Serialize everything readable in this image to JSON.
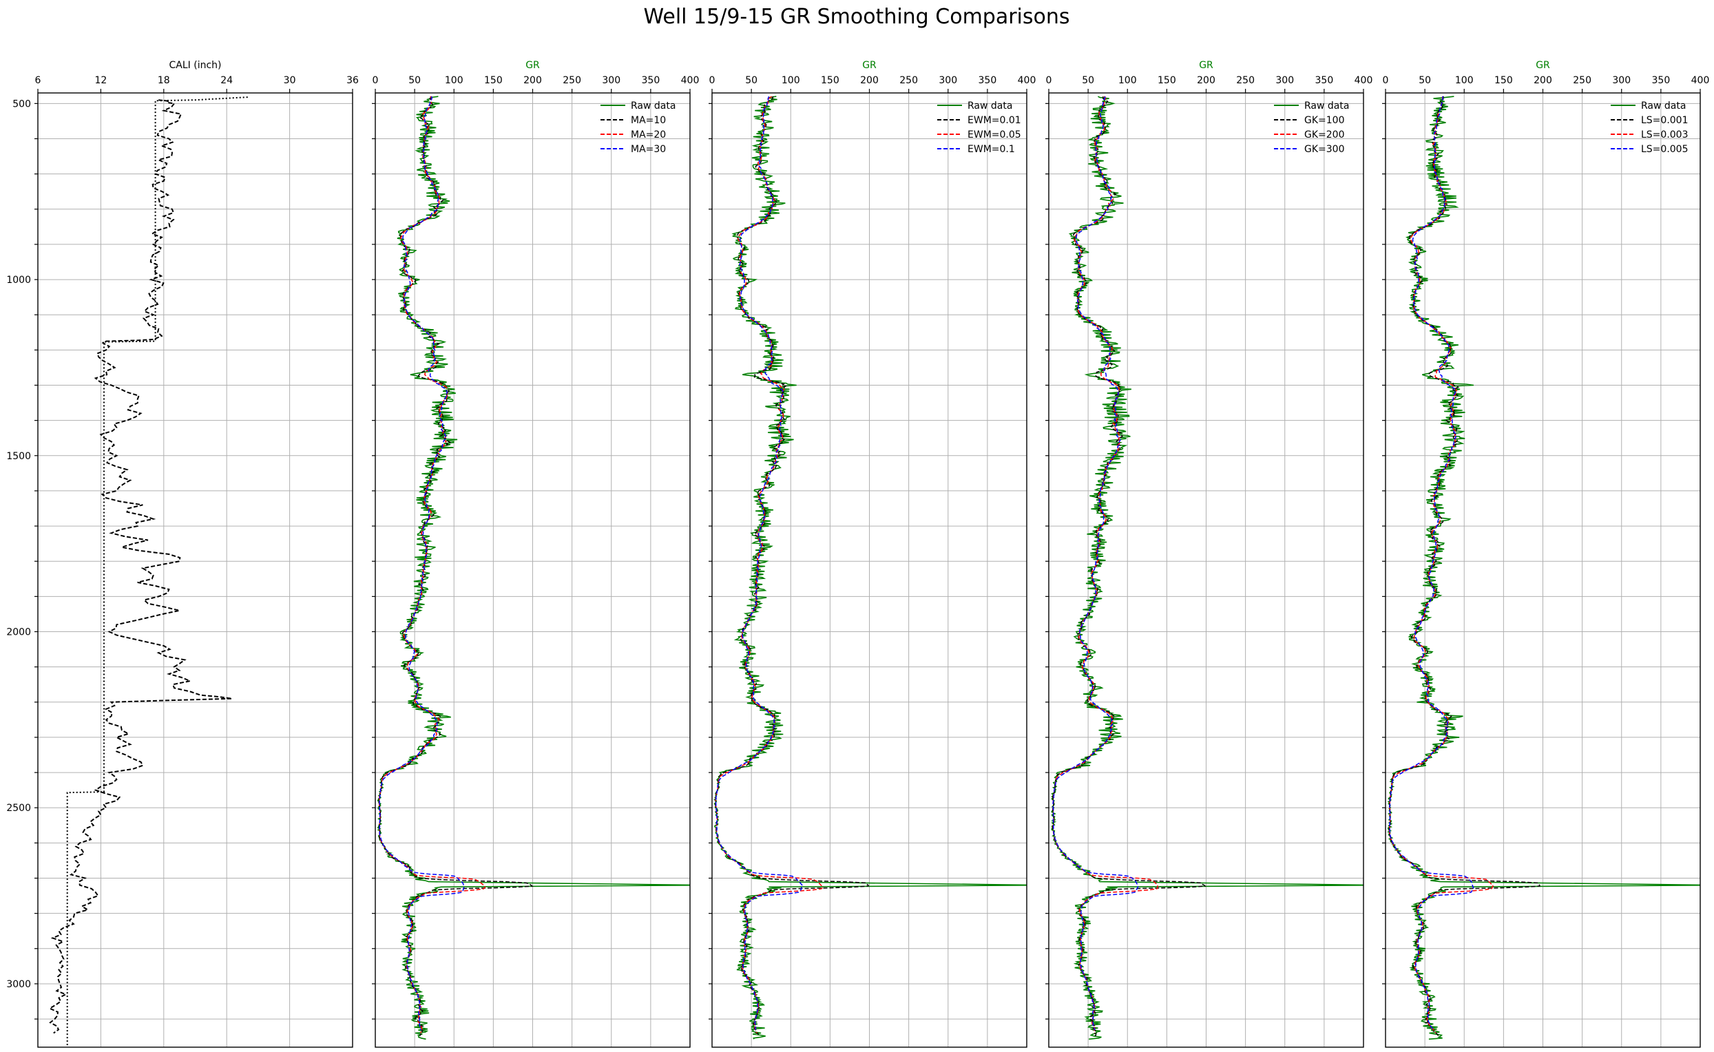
{
  "title": "Well 15/9-15 GR Smoothing Comparisons",
  "chart_data": [
    {
      "type": "line",
      "panel": "caliper",
      "xlabel": "CALI (inch)",
      "xlabel_color": "#000000",
      "xlim": [
        6,
        36
      ],
      "x_ticks": [
        "6",
        "12",
        "18",
        "24",
        "30",
        "36"
      ],
      "ylim": [
        3180,
        470
      ],
      "y_ticks": [
        "500",
        "1000",
        "1500",
        "2000",
        "2500",
        "3000"
      ],
      "grid": true,
      "legend": "none",
      "series": [
        {
          "color": "#000000",
          "style": "dashed",
          "depth": [
            490,
            495,
            500,
            520,
            540,
            560,
            580,
            600,
            620,
            640,
            660,
            680,
            700,
            720,
            740,
            760,
            780,
            800,
            820,
            840,
            860,
            880,
            900,
            920,
            940,
            960,
            980,
            1000,
            1020,
            1040,
            1060,
            1080,
            1100,
            1120,
            1140,
            1160,
            1170,
            1175,
            1180,
            1200,
            1220,
            1240,
            1260,
            1280,
            1300,
            1320,
            1340,
            1360,
            1380,
            1400,
            1420,
            1440,
            1460,
            1480,
            1500,
            1520,
            1540,
            1560,
            1580,
            1600,
            1620,
            1640,
            1660,
            1680,
            1700,
            1720,
            1740,
            1760,
            1780,
            1800,
            1820,
            1840,
            1860,
            1880,
            1900,
            1920,
            1940,
            1960,
            1980,
            2000,
            2020,
            2040,
            2060,
            2080,
            2100,
            2120,
            2140,
            2160,
            2180,
            2190,
            2200,
            2220,
            2240,
            2260,
            2280,
            2300,
            2320,
            2340,
            2360,
            2380,
            2400,
            2420,
            2440,
            2460,
            2480,
            2500,
            2520,
            2540,
            2560,
            2580,
            2600,
            2620,
            2640,
            2660,
            2680,
            2700,
            2720,
            2740,
            2760,
            2780,
            2800,
            2820,
            2840,
            2860,
            2880,
            2900,
            2920,
            2940,
            2960,
            2980,
            3000,
            3020,
            3040,
            3060,
            3080,
            3100,
            3120,
            3140,
            3160,
            3180
          ],
          "values": [
            17.5,
            18.5,
            19,
            18,
            19.5,
            18.5,
            17.5,
            18.5,
            17.8,
            18.8,
            17.5,
            18.2,
            17.2,
            18,
            17,
            18.4,
            17.6,
            18.8,
            18,
            18.5,
            17.4,
            17.8,
            17,
            17.6,
            16.8,
            17.5,
            17.2,
            16.8,
            17.8,
            16.6,
            17.2,
            16.5,
            17,
            16.4,
            17.5,
            17.8,
            17,
            12.5,
            12.2,
            12.5,
            11.8,
            12.8,
            12.5,
            11.5,
            13,
            14.5,
            15.5,
            14.8,
            15.8,
            14.5,
            13.5,
            12,
            13,
            12.8,
            13.5,
            12.6,
            14.5,
            13.8,
            14.2,
            13.5,
            12.5,
            16,
            14.5,
            17,
            15.5,
            13,
            16.5,
            14,
            18.5,
            19.5,
            16,
            17,
            15.5,
            18.5,
            17.5,
            16.5,
            19.5,
            16.5,
            13.5,
            12.8,
            15,
            18,
            17.5,
            20,
            19,
            18.5,
            20.5,
            19,
            21.5,
            24.5,
            13,
            12.5,
            13,
            12.8,
            14,
            13.5,
            14.8,
            13.5,
            15,
            16,
            12.8,
            13.5,
            12,
            12.5,
            13.5,
            12.5,
            12,
            11,
            10.5,
            10.8,
            10,
            10.2,
            9.5,
            10,
            9.6,
            10.5,
            10,
            11.5,
            10.8,
            10.2,
            9.5,
            9,
            8.5,
            8.2,
            8.4,
            8,
            8.3,
            8.1,
            8,
            7.9,
            8.1,
            7.8,
            8,
            7.7,
            7.9,
            7.6,
            7.8,
            7.5
          ]
        },
        {
          "color": "#000000",
          "style": "dotted",
          "depth": [
            482,
            490,
            492,
            1175,
            1177,
            2455,
            2457,
            3180
          ],
          "values": [
            26,
            21,
            17.2,
            17.2,
            12.3,
            12.3,
            8.8,
            8.8
          ]
        }
      ]
    },
    {
      "type": "line",
      "panel": "moving-average",
      "xlabel": "GR",
      "xlabel_color": "#008000",
      "xlim": [
        0,
        400
      ],
      "x_ticks": [
        "0",
        "50",
        "100",
        "150",
        "200",
        "250",
        "300",
        "350",
        "400"
      ],
      "ylim": [
        3180,
        470
      ],
      "grid": true,
      "legend": "top-right",
      "series": [
        {
          "name": "Raw data",
          "color": "#008000",
          "style": "solid"
        },
        {
          "name": "MA=10",
          "color": "#000000",
          "style": "dashed"
        },
        {
          "name": "MA=20",
          "color": "#ff0000",
          "style": "dashed"
        },
        {
          "name": "MA=30",
          "color": "#0000ff",
          "style": "dashed"
        }
      ]
    },
    {
      "type": "line",
      "panel": "exponential-weighted",
      "xlabel": "GR",
      "xlabel_color": "#008000",
      "xlim": [
        0,
        400
      ],
      "x_ticks": [
        "0",
        "50",
        "100",
        "150",
        "200",
        "250",
        "300",
        "350",
        "400"
      ],
      "ylim": [
        3180,
        470
      ],
      "grid": true,
      "legend": "top-right",
      "series": [
        {
          "name": "Raw data",
          "color": "#008000",
          "style": "solid"
        },
        {
          "name": "EWM=0.01",
          "color": "#000000",
          "style": "dashed"
        },
        {
          "name": "EWM=0.05",
          "color": "#ff0000",
          "style": "dashed"
        },
        {
          "name": "EWM=0.1",
          "color": "#0000ff",
          "style": "dashed"
        }
      ]
    },
    {
      "type": "line",
      "panel": "gaussian-kernel",
      "xlabel": "GR",
      "xlabel_color": "#008000",
      "xlim": [
        0,
        400
      ],
      "x_ticks": [
        "0",
        "50",
        "100",
        "150",
        "200",
        "250",
        "300",
        "350",
        "400"
      ],
      "ylim": [
        3180,
        470
      ],
      "grid": true,
      "legend": "top-right",
      "series": [
        {
          "name": "Raw data",
          "color": "#008000",
          "style": "solid"
        },
        {
          "name": "GK=100",
          "color": "#000000",
          "style": "dashed"
        },
        {
          "name": "GK=200",
          "color": "#ff0000",
          "style": "dashed"
        },
        {
          "name": "GK=300",
          "color": "#0000ff",
          "style": "dashed"
        }
      ]
    },
    {
      "type": "line",
      "panel": "lowess",
      "xlabel": "GR",
      "xlabel_color": "#008000",
      "xlim": [
        0,
        400
      ],
      "x_ticks": [
        "0",
        "50",
        "100",
        "150",
        "200",
        "250",
        "300",
        "350",
        "400"
      ],
      "ylim": [
        3180,
        470
      ],
      "grid": true,
      "legend": "top-right",
      "series": [
        {
          "name": "Raw data",
          "color": "#008000",
          "style": "solid"
        },
        {
          "name": "LS=0.001",
          "color": "#000000",
          "style": "dashed"
        },
        {
          "name": "LS=0.003",
          "color": "#ff0000",
          "style": "dashed"
        },
        {
          "name": "LS=0.005",
          "color": "#0000ff",
          "style": "dashed"
        }
      ]
    }
  ],
  "gr_profile": {
    "depth": [
      480,
      500,
      520,
      540,
      560,
      580,
      600,
      620,
      640,
      660,
      680,
      700,
      720,
      740,
      760,
      780,
      800,
      820,
      840,
      860,
      870,
      880,
      900,
      920,
      940,
      960,
      980,
      1000,
      1020,
      1040,
      1060,
      1080,
      1100,
      1120,
      1140,
      1160,
      1180,
      1200,
      1220,
      1240,
      1260,
      1270,
      1280,
      1300,
      1320,
      1340,
      1360,
      1380,
      1400,
      1420,
      1440,
      1460,
      1480,
      1500,
      1520,
      1540,
      1560,
      1580,
      1600,
      1620,
      1640,
      1660,
      1680,
      1700,
      1720,
      1740,
      1760,
      1780,
      1800,
      1820,
      1840,
      1860,
      1880,
      1900,
      1920,
      1940,
      1960,
      1980,
      2000,
      2020,
      2040,
      2060,
      2080,
      2100,
      2120,
      2140,
      2160,
      2180,
      2200,
      2220,
      2240,
      2260,
      2280,
      2300,
      2320,
      2340,
      2360,
      2380,
      2400,
      2420,
      2440,
      2460,
      2480,
      2500,
      2520,
      2540,
      2560,
      2580,
      2600,
      2620,
      2640,
      2660,
      2680,
      2700,
      2710,
      2720,
      2725,
      2730,
      2740,
      2760,
      2780,
      2800,
      2820,
      2840,
      2860,
      2880,
      2900,
      2920,
      2940,
      2960,
      2980,
      3000,
      3020,
      3040,
      3060,
      3080,
      3100,
      3120,
      3140,
      3160,
      3180
    ],
    "values": [
      75,
      70,
      65,
      62,
      68,
      66,
      60,
      62,
      64,
      60,
      62,
      65,
      68,
      72,
      78,
      82,
      75,
      72,
      60,
      38,
      30,
      32,
      35,
      45,
      33,
      40,
      35,
      48,
      42,
      35,
      38,
      35,
      42,
      52,
      65,
      72,
      80,
      78,
      75,
      80,
      70,
      45,
      60,
      95,
      88,
      85,
      82,
      88,
      85,
      80,
      88,
      90,
      85,
      82,
      78,
      72,
      68,
      70,
      65,
      60,
      62,
      68,
      70,
      62,
      58,
      62,
      65,
      60,
      62,
      58,
      60,
      55,
      58,
      60,
      55,
      50,
      48,
      42,
      38,
      35,
      45,
      52,
      45,
      38,
      50,
      55,
      58,
      52,
      48,
      62,
      85,
      78,
      75,
      80,
      72,
      60,
      50,
      45,
      12,
      8,
      8,
      6,
      5,
      5,
      6,
      6,
      5,
      6,
      8,
      15,
      20,
      35,
      45,
      55,
      65,
      420,
      85,
      75,
      65,
      48,
      40,
      42,
      45,
      48,
      42,
      40,
      45,
      42,
      40,
      38,
      45,
      48,
      50,
      55,
      58,
      60,
      55,
      58,
      60,
      62
    ]
  }
}
